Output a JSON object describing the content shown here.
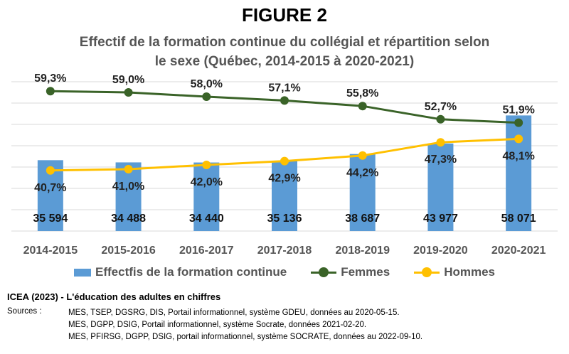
{
  "figure": {
    "title": "FIGURE 2",
    "subtitle_line1": "Effectif de la formation continue du collégial et répartition selon",
    "subtitle_line2": "le sexe (Québec, 2014-2015 à 2020-2021)"
  },
  "chart_data": {
    "type": "bar",
    "categories": [
      "2014-2015",
      "2015-2016",
      "2016-2017",
      "2017-2018",
      "2018-2019",
      "2019-2020",
      "2020-2021"
    ],
    "series": [
      {
        "name": "Effectfis de la formation continue",
        "type": "bar",
        "values": [
          35594,
          34488,
          34440,
          35136,
          38687,
          43977,
          58071
        ],
        "labels": [
          "35 594",
          "34 488",
          "34 440",
          "35 136",
          "38 687",
          "43 977",
          "58 071"
        ],
        "color": "#5b9bd5"
      },
      {
        "name": "Femmes",
        "type": "line",
        "values": [
          59.3,
          59.0,
          58.0,
          57.1,
          55.8,
          52.7,
          51.9
        ],
        "labels": [
          "59,3%",
          "59,0%",
          "58,0%",
          "57,1%",
          "55,8%",
          "52,7%",
          "51,9%"
        ],
        "color": "#3a6328"
      },
      {
        "name": "Hommes",
        "type": "line",
        "values": [
          40.7,
          41.0,
          42.0,
          42.9,
          44.2,
          47.3,
          48.1
        ],
        "labels": [
          "40,7%",
          "41,0%",
          "42,0%",
          "42,9%",
          "44,2%",
          "47,3%",
          "48,1%"
        ],
        "color": "#ffc000"
      }
    ],
    "grid": true,
    "legend_position": "bottom"
  },
  "legend": {
    "bar_label": "Effectfis de la formation continue",
    "femmes_label": "Femmes",
    "hommes_label": "Hommes"
  },
  "footer": {
    "credit": "ICEA (2023) - L'éducation des adultes en chiffres",
    "sources_label": "Sources :",
    "sources": [
      "MES, TSEP, DGSRG, DIS, Portail informationnel, système GDEU, données au 2020-05-15.",
      "MES, DGPP, DSIG, Portail informationnel, système Socrate, données 2021-02-20.",
      "MES, PFIRSG, DGPP, DSIG, portail informationnel, système SOCRATE, données au 2022-09-10."
    ]
  }
}
